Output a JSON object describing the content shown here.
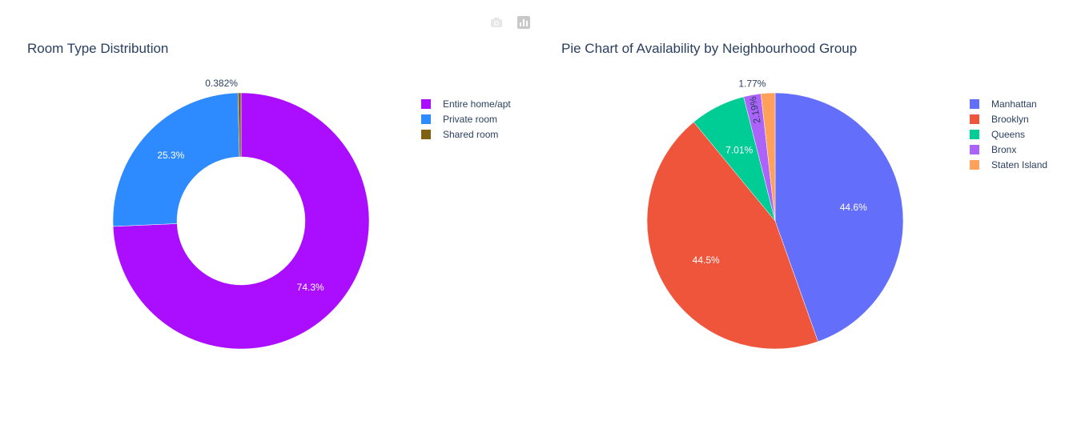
{
  "toolbar": {
    "camera_icon": "camera-icon",
    "plotly_logo": "plotly-logo-icon"
  },
  "chart_data": [
    {
      "type": "pie",
      "hole": 0.5,
      "title": "Room Type Distribution",
      "legend_position": "top-right",
      "slices": [
        {
          "label": "Entire home/apt",
          "percent": 74.3,
          "text": "74.3%",
          "color": "#ab0dff",
          "text_inside": true
        },
        {
          "label": "Private room",
          "percent": 25.3,
          "text": "25.3%",
          "color": "#2e8bff",
          "text_inside": true
        },
        {
          "label": "Shared room",
          "percent": 0.382,
          "text": "0.382%",
          "color": "#7f6112",
          "text_inside": false
        }
      ]
    },
    {
      "type": "pie",
      "hole": 0,
      "title": "Pie Chart of Availability by Neighbourhood Group",
      "legend_position": "top-right",
      "slices": [
        {
          "label": "Manhattan",
          "percent": 44.6,
          "text": "44.6%",
          "color": "#636efa",
          "text_inside": true
        },
        {
          "label": "Brooklyn",
          "percent": 44.5,
          "text": "44.5%",
          "color": "#ef553b",
          "text_inside": true
        },
        {
          "label": "Queens",
          "percent": 7.01,
          "text": "7.01%",
          "color": "#00cc96",
          "text_inside": true
        },
        {
          "label": "Bronx",
          "percent": 2.19,
          "text": "2.19%",
          "color": "#ab63fa",
          "text_inside": true
        },
        {
          "label": "Staten Island",
          "percent": 1.77,
          "text": "1.77%",
          "color": "#ffa15a",
          "text_inside": false
        }
      ]
    }
  ]
}
